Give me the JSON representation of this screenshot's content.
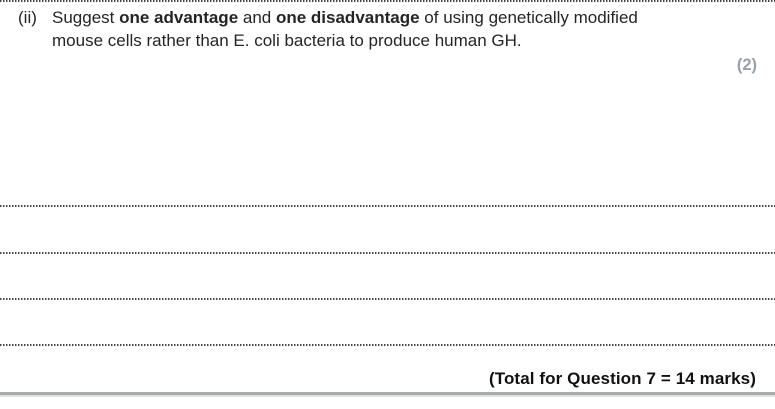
{
  "question": {
    "label": "(ii)",
    "segments": [
      "Suggest ",
      "one advantage",
      " and ",
      "one disadvantage",
      " of using genetically modified"
    ],
    "line2": "mouse cells rather than E. coli bacteria to produce human GH.",
    "marks": "(2)"
  },
  "answer_area": {
    "line_count": 6,
    "line_style": "dotted"
  },
  "footer": {
    "total_label": "(Total for Question 7 = 14 marks)"
  },
  "colors": {
    "question_text": "#262424",
    "marks_grey": "#96a1ab",
    "dotted_line": "#4a4a4a",
    "divider_dark": "#a8acab",
    "divider_light": "#e0e1e1"
  }
}
